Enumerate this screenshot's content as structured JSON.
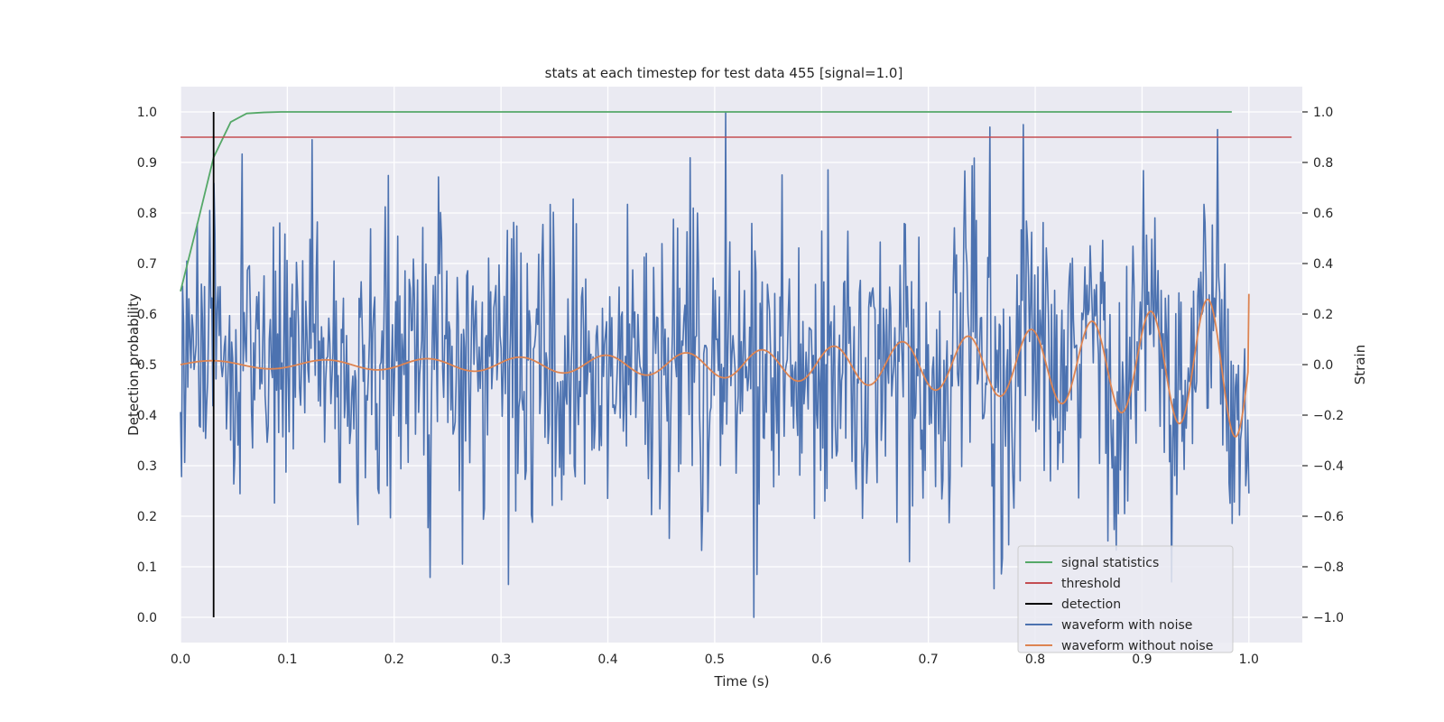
{
  "chart_data": {
    "type": "line",
    "title": "stats at each timestep for test data 455 [signal=1.0]",
    "xlabel": "Time (s)",
    "ylabel_left": "Detection probability",
    "ylabel_right": "Strain",
    "xlim": [
      0.0,
      1.05
    ],
    "ylim_left": [
      -0.05,
      1.05
    ],
    "ylim_right": [
      -1.1,
      1.1
    ],
    "x_ticks": [
      0.0,
      0.1,
      0.2,
      0.3,
      0.4,
      0.5,
      0.6,
      0.7,
      0.8,
      0.9,
      1.0
    ],
    "x_tick_labels": [
      "0.0",
      "0.1",
      "0.2",
      "0.3",
      "0.4",
      "0.5",
      "0.6",
      "0.7",
      "0.8",
      "0.9",
      "1.0"
    ],
    "y_left_ticks": [
      0.0,
      0.1,
      0.2,
      0.3,
      0.4,
      0.5,
      0.6,
      0.7,
      0.8,
      0.9,
      1.0
    ],
    "y_left_tick_labels": [
      "0.0",
      "0.1",
      "0.2",
      "0.3",
      "0.4",
      "0.5",
      "0.6",
      "0.7",
      "0.8",
      "0.9",
      "1.0"
    ],
    "y_right_ticks": [
      -1.0,
      -0.8,
      -0.6,
      -0.4,
      -0.2,
      0.0,
      0.2,
      0.4,
      0.6,
      0.8,
      1.0
    ],
    "y_right_tick_labels": [
      "−1.0",
      "−0.8",
      "−0.6",
      "−0.4",
      "−0.2",
      "0.0",
      "0.2",
      "0.4",
      "0.6",
      "0.8",
      "1.0"
    ],
    "grid": true,
    "legend_position": "bottom-right",
    "colors": {
      "signal_statistics": "#55a868",
      "threshold": "#c44e52",
      "detection": "#000000",
      "waveform_with_noise": "#4c72b0",
      "waveform_without_noise": "#dd8452",
      "plot_background": "#eaeaf2",
      "grid": "#ffffff"
    },
    "series": [
      {
        "name": "signal statistics",
        "axis": "left",
        "x": [
          0.0,
          0.016,
          0.031,
          0.047,
          0.062,
          0.078,
          0.094,
          0.2,
          0.4,
          0.6,
          0.8,
          0.984
        ],
        "y": [
          0.645,
          0.78,
          0.91,
          0.98,
          0.997,
          0.999,
          1.0,
          1.0,
          1.0,
          1.0,
          1.0,
          1.0
        ]
      },
      {
        "name": "threshold",
        "axis": "left",
        "x": [
          0.0,
          1.04
        ],
        "y": [
          0.95,
          0.95
        ]
      },
      {
        "name": "detection",
        "axis": "left",
        "x": [
          0.031,
          0.031
        ],
        "y": [
          0.0,
          1.0
        ]
      },
      {
        "name": "waveform with noise",
        "axis": "right",
        "generated": "noisy strain, roughly -1.0 to 1.0, sample rate about 1024 per second, mean tracks the waveform without noise",
        "noise_std": 0.29,
        "noise_seed": 455,
        "samples": 1024,
        "peaks": [
          {
            "x": 0.123,
            "y": 0.89
          },
          {
            "x": 0.51,
            "y": 1.0
          },
          {
            "x": 0.537,
            "y": -1.0
          },
          {
            "x": 0.758,
            "y": 0.94
          },
          {
            "x": 0.789,
            "y": 0.95
          },
          {
            "x": 0.307,
            "y": -0.87
          },
          {
            "x": 0.928,
            "y": -0.86
          }
        ]
      },
      {
        "name": "waveform without noise",
        "axis": "right",
        "type": "chirp",
        "x_range": [
          0.0,
          1.0
        ],
        "amplitude_start": 0.015,
        "amplitude_end": 0.3,
        "frequency_start_hz": 8.5,
        "frequency_end_hz": 19.5,
        "phase": 0.0,
        "end_value": 0.28
      }
    ]
  }
}
